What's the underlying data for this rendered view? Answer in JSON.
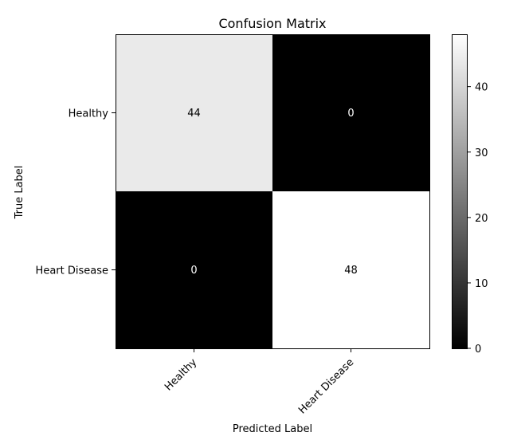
{
  "chart_data": {
    "type": "heatmap",
    "title": "Confusion Matrix",
    "xlabel": "Predicted Label",
    "ylabel": "True Label",
    "x_categories": [
      "Healthy",
      "Heart Disease"
    ],
    "y_categories": [
      "Healthy",
      "Heart Disease"
    ],
    "values": [
      [
        44,
        0
      ],
      [
        0,
        48
      ]
    ],
    "cell_labels": [
      [
        "44",
        "0"
      ],
      [
        "0",
        "48"
      ]
    ],
    "colormap": "gray",
    "vmin": 0,
    "vmax": 48,
    "colorbar_ticks": [
      "0",
      "10",
      "20",
      "30",
      "40"
    ],
    "colorbar_tick_values": [
      0,
      10,
      20,
      30,
      40
    ],
    "text_color_dark_cell": "#ffffff",
    "text_color_light_cell": "#000000",
    "grid": false
  }
}
